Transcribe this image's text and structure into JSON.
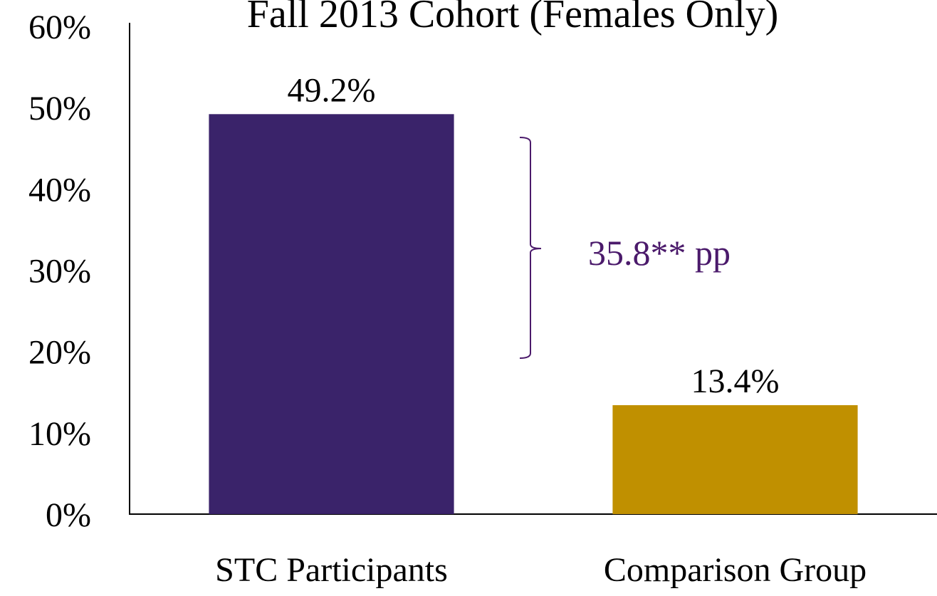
{
  "chart_data": {
    "type": "bar",
    "title": "Fall 2013 Cohort (Females Only)",
    "categories": [
      "STC Participants",
      "Comparison Group"
    ],
    "values": [
      49.2,
      13.4
    ],
    "value_labels": [
      "49.2%",
      "13.4%"
    ],
    "colors": [
      "#3a236a",
      "#c09000"
    ],
    "annotation": "35.8** pp",
    "annotation_color": "#4b1a6b",
    "ylim": [
      0,
      60
    ],
    "yticks": [
      {
        "value": 0,
        "label": "0%"
      },
      {
        "value": 10,
        "label": "10%"
      },
      {
        "value": 20,
        "label": "20%"
      },
      {
        "value": 30,
        "label": "30%"
      },
      {
        "value": 40,
        "label": "40%"
      },
      {
        "value": 50,
        "label": "50%"
      },
      {
        "value": 60,
        "label": "60%"
      }
    ],
    "grid": false
  }
}
